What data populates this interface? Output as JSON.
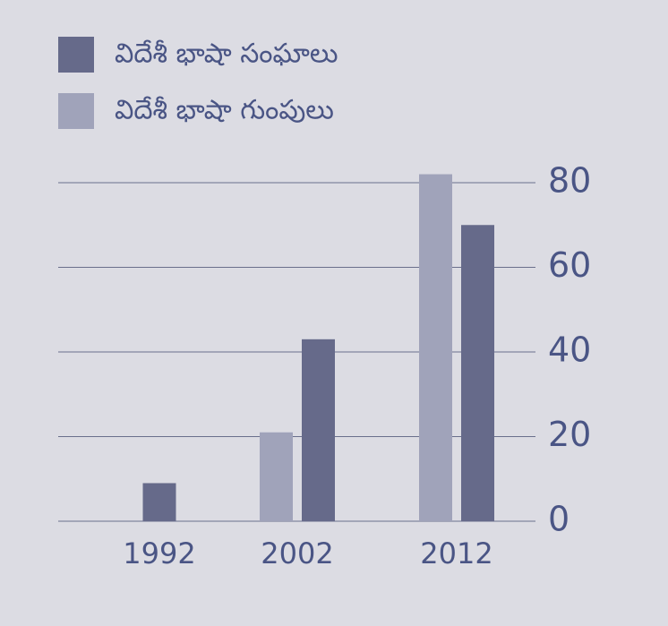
{
  "chart_data": {
    "type": "bar",
    "categories": [
      "1992",
      "2002",
      "2012"
    ],
    "series": [
      {
        "name": "విదేశీ భాషా సంఘాలు",
        "color": "#666a8a",
        "values": [
          9,
          43,
          70
        ]
      },
      {
        "name": "విదేశీ భాషా గుంపులు",
        "color": "#a0a3ba",
        "values": [
          null,
          21,
          82
        ]
      }
    ],
    "ylim": [
      0,
      80
    ],
    "yticks": [
      0,
      20,
      40,
      60,
      80
    ],
    "grid": true
  }
}
